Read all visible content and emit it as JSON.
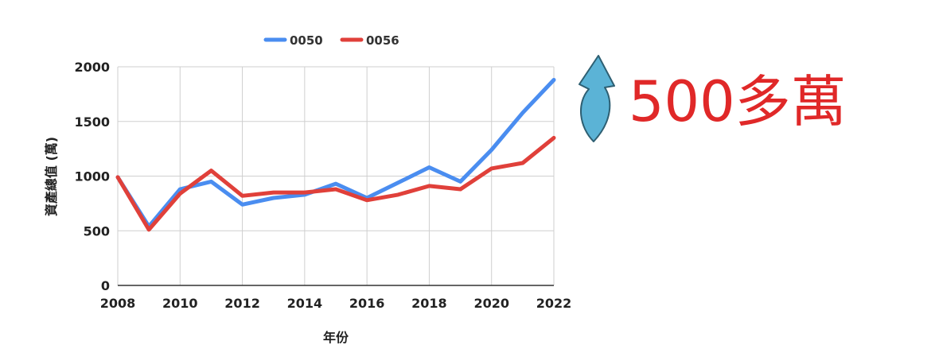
{
  "chart_data": {
    "type": "line",
    "title": "",
    "xlabel": "年份",
    "ylabel": "資產總值 (萬)",
    "xlim": [
      2008,
      2022
    ],
    "ylim": [
      0,
      2000
    ],
    "x_ticks": [
      "2008",
      "2010",
      "2012",
      "2014",
      "2016",
      "2018",
      "2020",
      "2022"
    ],
    "y_ticks": [
      "0",
      "500",
      "1000",
      "1500",
      "2000"
    ],
    "x_tick_values": [
      2008,
      2010,
      2012,
      2014,
      2016,
      2018,
      2020,
      2022
    ],
    "y_tick_values": [
      0,
      500,
      1000,
      1500,
      2000
    ],
    "grid": true,
    "legend_position": "top-center",
    "x": [
      2008,
      2009,
      2010,
      2011,
      2012,
      2013,
      2014,
      2015,
      2016,
      2017,
      2018,
      2019,
      2020,
      2021,
      2022
    ],
    "series": [
      {
        "name": "0050",
        "color": "#4a8df0",
        "values": [
          990,
          540,
          880,
          950,
          740,
          800,
          830,
          930,
          800,
          940,
          1080,
          950,
          1240,
          1580,
          1880
        ]
      },
      {
        "name": "0056",
        "color": "#e0403a",
        "values": [
          990,
          510,
          840,
          1050,
          820,
          850,
          850,
          880,
          780,
          830,
          910,
          880,
          1070,
          1120,
          1350
        ]
      }
    ],
    "annotation": {
      "text": "500多萬",
      "arrow": "up-arrow-icon",
      "arrow_color": "#5bb3d6",
      "text_color": "#e02828"
    }
  }
}
